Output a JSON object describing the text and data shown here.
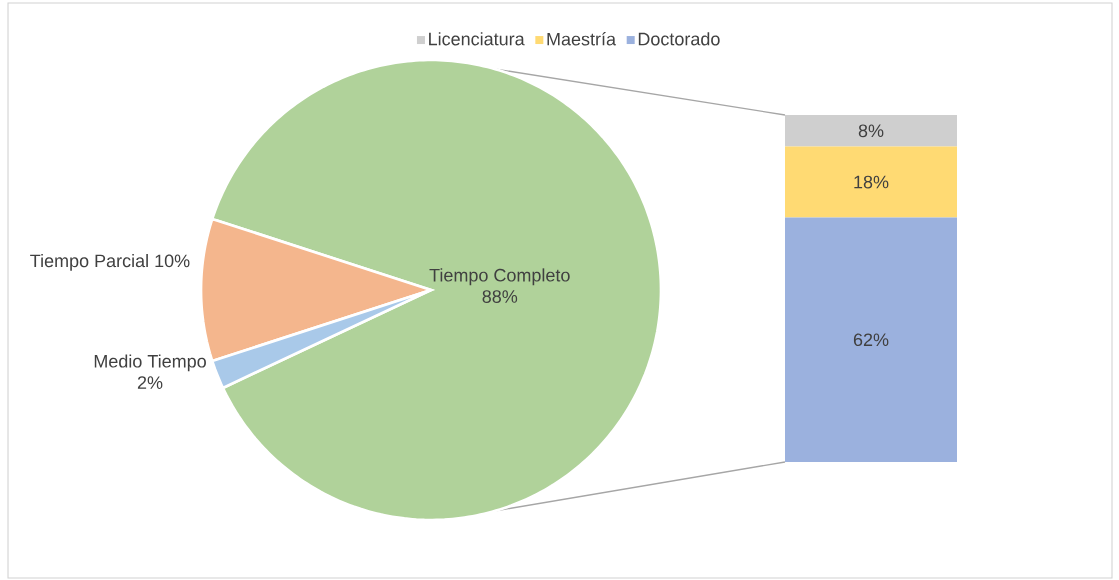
{
  "chart_data": [
    {
      "type": "pie",
      "categories": [
        "Tiempo Completo",
        "Tiempo Parcial",
        "Medio Tiempo"
      ],
      "values": [
        88,
        10,
        2
      ],
      "value_labels": [
        "88%",
        "10%",
        "2%"
      ],
      "colors": [
        "#b0d29a",
        "#f4b68d",
        "#a9c9e9"
      ]
    },
    {
      "type": "bar",
      "stacked": true,
      "categories": [
        null
      ],
      "legend": "top",
      "series": [
        {
          "name": "Doctorado",
          "color": "#9bb1de",
          "values": [
            62
          ],
          "value_labels": [
            "62%"
          ]
        },
        {
          "name": "Maestría",
          "color": "#ffda73",
          "values": [
            18
          ],
          "value_labels": [
            "18%"
          ]
        },
        {
          "name": "Licenciatura",
          "color": "#cfcfcf",
          "values": [
            8
          ],
          "value_labels": [
            "8%"
          ]
        }
      ]
    }
  ]
}
